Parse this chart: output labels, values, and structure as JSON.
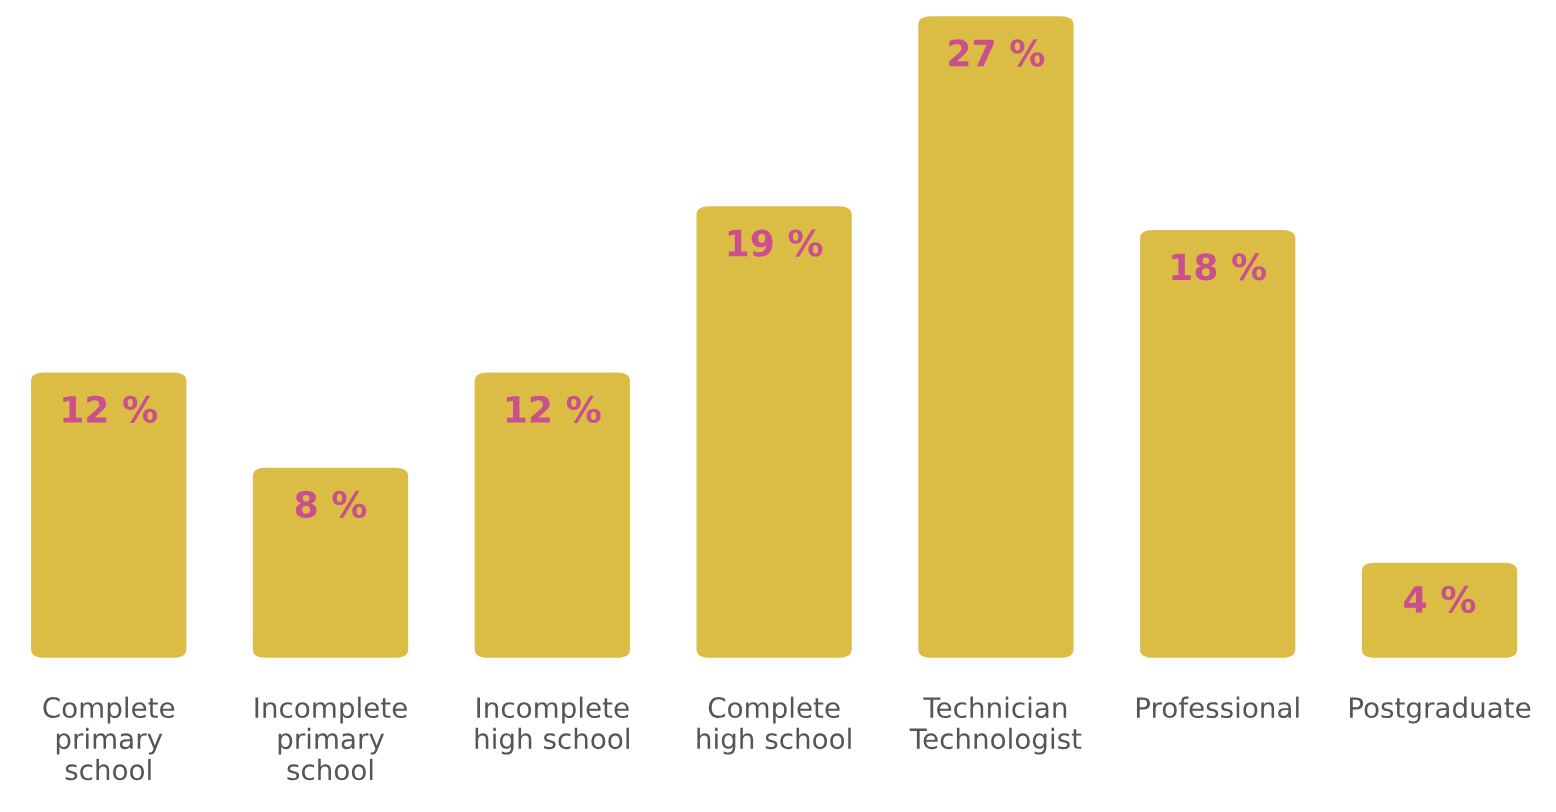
{
  "chart_data": {
    "type": "bar",
    "categories": [
      "Complete\nprimary\nschool",
      "Incomplete\nprimary\nschool",
      "Incomplete\nhigh school",
      "Complete\nhigh school",
      "Technician\nTechnologist",
      "Professional",
      "Postgraduate"
    ],
    "values": [
      12,
      8,
      12,
      19,
      27,
      18,
      4
    ],
    "value_labels": [
      "12 %",
      "8 %",
      "12 %",
      "19 %",
      "27 %",
      "18 %",
      "4 %"
    ],
    "color": "#dbbd45",
    "grid": false,
    "legend": false,
    "tick_labels": "x"
  }
}
